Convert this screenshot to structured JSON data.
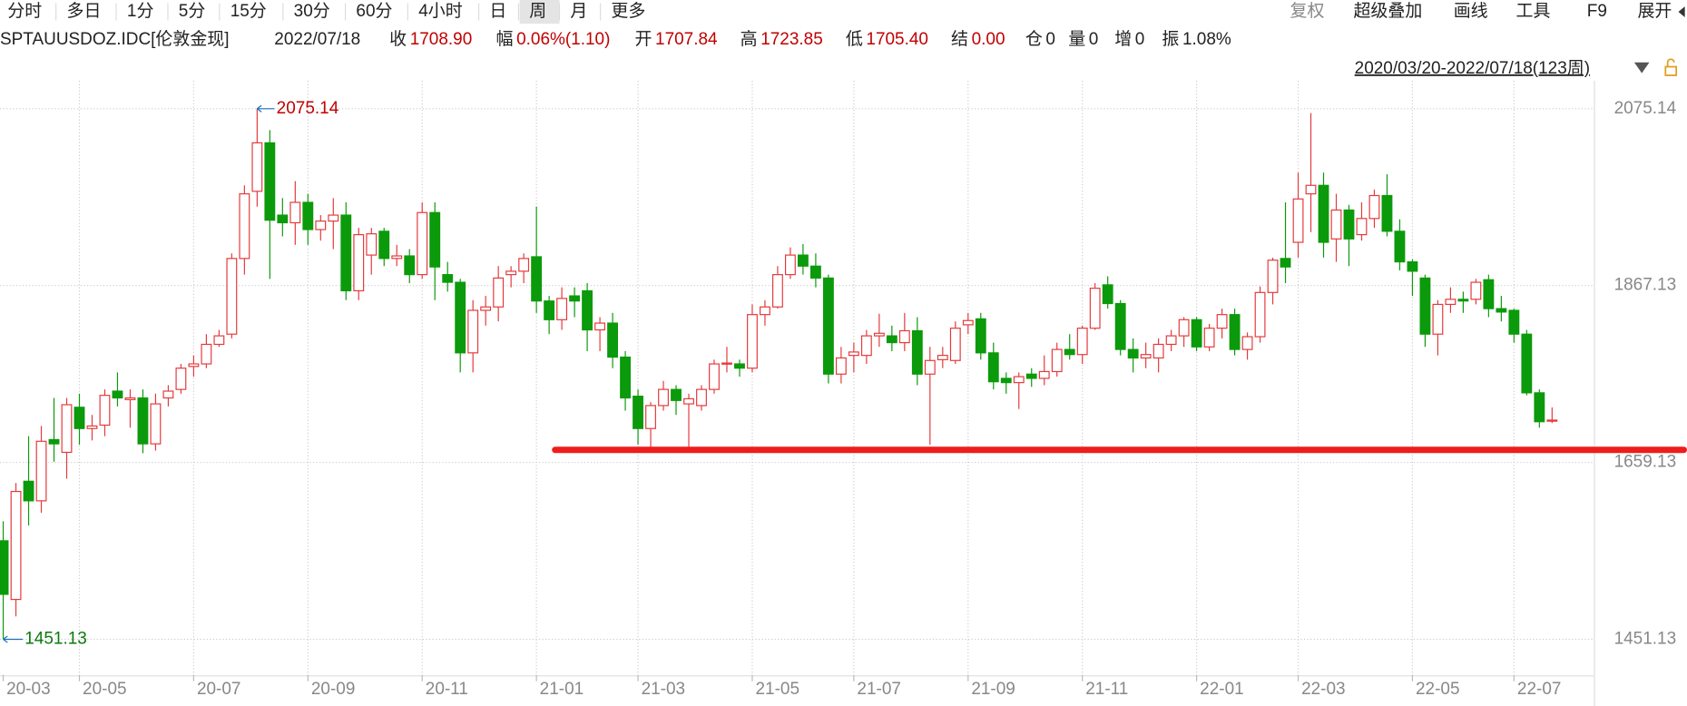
{
  "toolbar": {
    "periods": [
      "分时",
      "多日",
      "1分",
      "5分",
      "15分",
      "30分",
      "60分",
      "4小时",
      "日",
      "周",
      "月",
      "更多"
    ],
    "selected": "周",
    "tools": [
      "复权",
      "超级叠加",
      "画线",
      "工具",
      "F9",
      "展开"
    ]
  },
  "quote": {
    "symbol": "SPTAUUSDOZ.IDC[伦敦金现]",
    "date": "2022/07/18",
    "fields": [
      {
        "label": "收",
        "value": "1708.90"
      },
      {
        "label": "幅",
        "value": "0.06%(1.10)"
      },
      {
        "label": "开",
        "value": "1707.84"
      },
      {
        "label": "高",
        "value": "1723.85"
      },
      {
        "label": "低",
        "value": "1705.40"
      },
      {
        "label": "结",
        "value": "0.00"
      },
      {
        "label": "仓",
        "value": "0"
      },
      {
        "label": "量",
        "value": "0"
      },
      {
        "label": "增",
        "value": "0"
      },
      {
        "label": "振",
        "value": "1.08%"
      }
    ]
  },
  "range_label": "2020/03/20-2022/07/18(123周)",
  "chart_data": {
    "type": "candlestick",
    "up_color": "#e4393c",
    "down_color": "#0b9a0b",
    "ylim": [
      1409.38,
      2108.05
    ],
    "yticks": [
      2075.14,
      1867.13,
      1659.13,
      1451.13
    ],
    "grid": true,
    "max_label": "2075.14",
    "min_label": "1451.13",
    "support_line": {
      "value": 1673.9,
      "color": "#ee1c1c"
    },
    "categories": [
      "20-03",
      null,
      null,
      null,
      null,
      null,
      "20-05",
      null,
      null,
      null,
      null,
      null,
      null,
      null,
      null,
      "20-07",
      null,
      null,
      null,
      null,
      null,
      null,
      null,
      null,
      "20-09",
      null,
      null,
      null,
      null,
      null,
      null,
      null,
      null,
      "20-11",
      null,
      null,
      null,
      null,
      null,
      null,
      null,
      null,
      "21-01",
      null,
      null,
      null,
      null,
      null,
      null,
      null,
      "21-03",
      null,
      null,
      null,
      null,
      null,
      null,
      null,
      null,
      "21-05",
      null,
      null,
      null,
      null,
      null,
      null,
      null,
      "21-07",
      null,
      null,
      null,
      null,
      null,
      null,
      null,
      null,
      "21-09",
      null,
      null,
      null,
      null,
      null,
      null,
      null,
      null,
      "21-11",
      null,
      null,
      null,
      null,
      null,
      null,
      null,
      null,
      "22-01",
      null,
      null,
      null,
      null,
      null,
      null,
      null,
      "22-03",
      null,
      null,
      null,
      null,
      null,
      null,
      null,
      null,
      "22-05",
      null,
      null,
      null,
      null,
      null,
      null,
      null,
      "22-07",
      null,
      null,
      null
    ],
    "candles": [
      [
        1567,
        1590,
        1451.13,
        1504
      ],
      [
        1498,
        1635,
        1478,
        1625
      ],
      [
        1637,
        1690,
        1585,
        1614
      ],
      [
        1614,
        1702,
        1600,
        1684
      ],
      [
        1686,
        1735,
        1660,
        1681
      ],
      [
        1671,
        1735,
        1640,
        1727
      ],
      [
        1724,
        1740,
        1680,
        1699
      ],
      [
        1699,
        1715,
        1685,
        1702
      ],
      [
        1703,
        1745,
        1690,
        1738
      ],
      [
        1743,
        1765,
        1725,
        1735
      ],
      [
        1733,
        1745,
        1700,
        1735
      ],
      [
        1735,
        1745,
        1670,
        1681
      ],
      [
        1681,
        1740,
        1673,
        1728
      ],
      [
        1735,
        1750,
        1725,
        1743
      ],
      [
        1745,
        1775,
        1740,
        1770
      ],
      [
        1772,
        1785,
        1760,
        1775
      ],
      [
        1775,
        1810,
        1770,
        1798
      ],
      [
        1798,
        1815,
        1795,
        1808
      ],
      [
        1810,
        1905,
        1805,
        1899
      ],
      [
        1899,
        1985,
        1880,
        1975
      ],
      [
        1978,
        2075.14,
        1960,
        2035
      ],
      [
        2035,
        2050,
        1875,
        1944
      ],
      [
        1950,
        1970,
        1925,
        1941
      ],
      [
        1941,
        1990,
        1915,
        1965
      ],
      [
        1965,
        1975,
        1915,
        1933
      ],
      [
        1933,
        1950,
        1920,
        1943
      ],
      [
        1943,
        1970,
        1910,
        1950
      ],
      [
        1950,
        1965,
        1850,
        1861
      ],
      [
        1861,
        1935,
        1850,
        1927
      ],
      [
        1903,
        1935,
        1880,
        1928
      ],
      [
        1931,
        1935,
        1890,
        1899
      ],
      [
        1899,
        1915,
        1890,
        1902
      ],
      [
        1902,
        1910,
        1870,
        1880
      ],
      [
        1880,
        1965,
        1875,
        1953
      ],
      [
        1953,
        1965,
        1850,
        1889
      ],
      [
        1880,
        1895,
        1860,
        1871
      ],
      [
        1871,
        1875,
        1765,
        1788
      ],
      [
        1788,
        1850,
        1765,
        1838
      ],
      [
        1838,
        1855,
        1820,
        1842
      ],
      [
        1842,
        1890,
        1825,
        1876
      ],
      [
        1880,
        1890,
        1865,
        1884
      ],
      [
        1884,
        1905,
        1870,
        1899
      ],
      [
        1901,
        1960,
        1835,
        1849
      ],
      [
        1849,
        1855,
        1810,
        1827
      ],
      [
        1827,
        1865,
        1815,
        1852
      ],
      [
        1855,
        1865,
        1830,
        1849
      ],
      [
        1861,
        1870,
        1790,
        1815
      ],
      [
        1815,
        1830,
        1790,
        1823
      ],
      [
        1823,
        1835,
        1770,
        1783
      ],
      [
        1783,
        1790,
        1720,
        1735
      ],
      [
        1737,
        1745,
        1680,
        1699
      ],
      [
        1699,
        1730,
        1676,
        1726
      ],
      [
        1726,
        1755,
        1720,
        1745
      ],
      [
        1745,
        1750,
        1715,
        1732
      ],
      [
        1728,
        1740,
        1676,
        1734
      ],
      [
        1726,
        1750,
        1720,
        1745
      ],
      [
        1745,
        1780,
        1740,
        1775
      ],
      [
        1775,
        1795,
        1765,
        1776
      ],
      [
        1775,
        1780,
        1760,
        1770
      ],
      [
        1770,
        1845,
        1765,
        1833
      ],
      [
        1833,
        1850,
        1820,
        1842
      ],
      [
        1842,
        1890,
        1840,
        1880
      ],
      [
        1880,
        1912,
        1875,
        1903
      ],
      [
        1903,
        1916,
        1880,
        1890
      ],
      [
        1890,
        1905,
        1865,
        1876
      ],
      [
        1876,
        1880,
        1752,
        1763
      ],
      [
        1763,
        1795,
        1752,
        1782
      ],
      [
        1785,
        1800,
        1765,
        1789
      ],
      [
        1785,
        1815,
        1775,
        1808
      ],
      [
        1808,
        1834,
        1795,
        1811
      ],
      [
        1808,
        1820,
        1790,
        1800
      ],
      [
        1800,
        1835,
        1790,
        1814
      ],
      [
        1814,
        1830,
        1750,
        1763
      ],
      [
        1763,
        1795,
        1680,
        1779
      ],
      [
        1780,
        1795,
        1770,
        1785
      ],
      [
        1779,
        1825,
        1775,
        1817
      ],
      [
        1821,
        1835,
        1810,
        1826
      ],
      [
        1828,
        1835,
        1780,
        1788
      ],
      [
        1788,
        1800,
        1745,
        1754
      ],
      [
        1758,
        1765,
        1740,
        1753
      ],
      [
        1753,
        1765,
        1722,
        1760
      ],
      [
        1763,
        1770,
        1748,
        1758
      ],
      [
        1758,
        1785,
        1750,
        1766
      ],
      [
        1766,
        1800,
        1760,
        1792
      ],
      [
        1792,
        1810,
        1780,
        1786
      ],
      [
        1786,
        1820,
        1775,
        1817
      ],
      [
        1817,
        1870,
        1815,
        1864
      ],
      [
        1868,
        1878,
        1840,
        1846
      ],
      [
        1846,
        1850,
        1785,
        1792
      ],
      [
        1792,
        1805,
        1765,
        1782
      ],
      [
        1782,
        1800,
        1770,
        1786
      ],
      [
        1782,
        1805,
        1765,
        1798
      ],
      [
        1798,
        1815,
        1790,
        1808
      ],
      [
        1808,
        1830,
        1795,
        1827
      ],
      [
        1827,
        1830,
        1790,
        1795
      ],
      [
        1795,
        1822,
        1790,
        1817
      ],
      [
        1817,
        1840,
        1805,
        1833
      ],
      [
        1833,
        1840,
        1785,
        1792
      ],
      [
        1792,
        1812,
        1780,
        1807
      ],
      [
        1807,
        1866,
        1800,
        1859
      ],
      [
        1859,
        1900,
        1845,
        1897
      ],
      [
        1899,
        1965,
        1870,
        1889
      ],
      [
        1918,
        2000,
        1900,
        1969
      ],
      [
        1975,
        2070,
        1930,
        1985
      ],
      [
        1985,
        2000,
        1900,
        1918
      ],
      [
        1922,
        1975,
        1895,
        1956
      ],
      [
        1956,
        1962,
        1890,
        1922
      ],
      [
        1927,
        1965,
        1920,
        1946
      ],
      [
        1946,
        1980,
        1935,
        1973
      ],
      [
        1973,
        1998,
        1925,
        1931
      ],
      [
        1931,
        1945,
        1885,
        1895
      ],
      [
        1895,
        1898,
        1855,
        1884
      ],
      [
        1876,
        1880,
        1795,
        1810
      ],
      [
        1810,
        1850,
        1785,
        1845
      ],
      [
        1845,
        1865,
        1835,
        1851
      ],
      [
        1851,
        1860,
        1835,
        1849
      ],
      [
        1851,
        1875,
        1845,
        1871
      ],
      [
        1874,
        1880,
        1830,
        1840
      ],
      [
        1840,
        1855,
        1825,
        1836
      ],
      [
        1838,
        1840,
        1800,
        1810
      ],
      [
        1810,
        1815,
        1738,
        1741
      ],
      [
        1741,
        1745,
        1700,
        1707
      ],
      [
        1707.84,
        1723.85,
        1705.4,
        1708.9
      ]
    ]
  }
}
